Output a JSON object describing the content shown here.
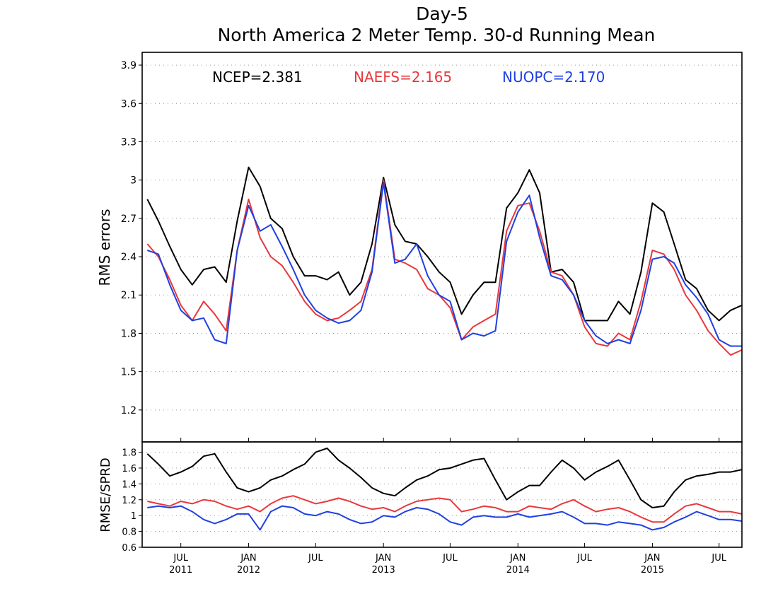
{
  "colors": {
    "ncep": "#000000",
    "naefs": "#e8383c",
    "nuopc": "#2040e0",
    "grid": "#9a9a9a"
  },
  "chart_data": [
    {
      "type": "line",
      "title": "Day-5",
      "subtitle": "North America 2 Meter Temp. 30-d Running Mean",
      "ylabel": "RMS errors",
      "ylim": [
        0.95,
        4.0
      ],
      "yticks": [
        "1.2",
        "1.5",
        "1.8",
        "2.1",
        "2.4",
        "2.7",
        "3",
        "3.3",
        "3.6",
        "3.9"
      ],
      "grid": "dotted",
      "legend": [
        {
          "label": "NCEP=2.381",
          "series": "NCEP"
        },
        {
          "label": "NAEFS=2.165",
          "series": "NAEFS"
        },
        {
          "label": "NUOPC=2.170",
          "series": "NUOPC"
        }
      ],
      "x": [
        "2011-04",
        "2011-05",
        "2011-06",
        "2011-07",
        "2011-08",
        "2011-09",
        "2011-10",
        "2011-11",
        "2011-12",
        "2012-01",
        "2012-02",
        "2012-03",
        "2012-04",
        "2012-05",
        "2012-06",
        "2012-07",
        "2012-08",
        "2012-09",
        "2012-10",
        "2012-11",
        "2012-12",
        "2013-01",
        "2013-02",
        "2013-03",
        "2013-04",
        "2013-05",
        "2013-06",
        "2013-07",
        "2013-08",
        "2013-09",
        "2013-10",
        "2013-11",
        "2013-12",
        "2014-01",
        "2014-02",
        "2014-03",
        "2014-04",
        "2014-05",
        "2014-06",
        "2014-07",
        "2014-08",
        "2014-09",
        "2014-10",
        "2014-11",
        "2014-12",
        "2015-01",
        "2015-02",
        "2015-03",
        "2015-04",
        "2015-05",
        "2015-06",
        "2015-07",
        "2015-08",
        "2015-09"
      ],
      "series": [
        {
          "name": "NCEP",
          "values": [
            2.85,
            2.68,
            2.48,
            2.3,
            2.18,
            2.3,
            2.32,
            2.2,
            2.68,
            3.1,
            2.95,
            2.7,
            2.62,
            2.4,
            2.25,
            2.25,
            2.22,
            2.28,
            2.1,
            2.2,
            2.5,
            3.02,
            2.65,
            2.52,
            2.5,
            2.4,
            2.28,
            2.2,
            1.95,
            2.1,
            2.2,
            2.2,
            2.78,
            2.9,
            3.08,
            2.9,
            2.28,
            2.3,
            2.2,
            1.9,
            1.9,
            1.9,
            2.05,
            1.95,
            2.28,
            2.82,
            2.75,
            2.5,
            2.22,
            2.15,
            1.98,
            1.9,
            1.98,
            2.02
          ]
        },
        {
          "name": "NAEFS",
          "values": [
            2.5,
            2.4,
            2.22,
            2.02,
            1.9,
            2.05,
            1.95,
            1.82,
            2.45,
            2.85,
            2.55,
            2.4,
            2.33,
            2.2,
            2.05,
            1.95,
            1.9,
            1.92,
            1.98,
            2.05,
            2.3,
            3.0,
            2.38,
            2.35,
            2.3,
            2.15,
            2.1,
            2.0,
            1.75,
            1.85,
            1.9,
            1.95,
            2.6,
            2.8,
            2.82,
            2.6,
            2.28,
            2.25,
            2.1,
            1.85,
            1.72,
            1.7,
            1.8,
            1.75,
            2.05,
            2.45,
            2.42,
            2.3,
            2.1,
            1.98,
            1.82,
            1.72,
            1.63,
            1.67
          ]
        },
        {
          "name": "NUOPC",
          "values": [
            2.45,
            2.42,
            2.18,
            1.98,
            1.9,
            1.92,
            1.75,
            1.72,
            2.45,
            2.8,
            2.6,
            2.65,
            2.48,
            2.3,
            2.1,
            1.98,
            1.92,
            1.88,
            1.9,
            1.98,
            2.28,
            2.98,
            2.35,
            2.38,
            2.5,
            2.25,
            2.1,
            2.05,
            1.75,
            1.8,
            1.78,
            1.82,
            2.52,
            2.75,
            2.88,
            2.55,
            2.25,
            2.22,
            2.1,
            1.9,
            1.78,
            1.72,
            1.75,
            1.72,
            1.98,
            2.38,
            2.4,
            2.35,
            2.18,
            2.08,
            1.95,
            1.75,
            1.7,
            1.7
          ]
        }
      ]
    },
    {
      "type": "line",
      "ylabel": "RMSE/SPRD",
      "ylim": [
        0.6,
        1.93
      ],
      "yticks": [
        "0.6",
        "0.8",
        "1",
        "1.2",
        "1.4",
        "1.6",
        "1.8"
      ],
      "grid": "dotted",
      "xticks": [
        {
          "month": "JUL",
          "year": "2011",
          "date": "2011-07"
        },
        {
          "month": "JAN",
          "year": "2012",
          "date": "2012-01"
        },
        {
          "month": "JUL",
          "year": "",
          "date": "2012-07"
        },
        {
          "month": "JAN",
          "year": "2013",
          "date": "2013-01"
        },
        {
          "month": "JUL",
          "year": "",
          "date": "2013-07"
        },
        {
          "month": "JAN",
          "year": "2014",
          "date": "2014-01"
        },
        {
          "month": "JUL",
          "year": "",
          "date": "2014-07"
        },
        {
          "month": "JAN",
          "year": "2015",
          "date": "2015-01"
        },
        {
          "month": "JUL",
          "year": "",
          "date": "2015-07"
        }
      ],
      "x": [
        "2011-04",
        "2011-05",
        "2011-06",
        "2011-07",
        "2011-08",
        "2011-09",
        "2011-10",
        "2011-11",
        "2011-12",
        "2012-01",
        "2012-02",
        "2012-03",
        "2012-04",
        "2012-05",
        "2012-06",
        "2012-07",
        "2012-08",
        "2012-09",
        "2012-10",
        "2012-11",
        "2012-12",
        "2013-01",
        "2013-02",
        "2013-03",
        "2013-04",
        "2013-05",
        "2013-06",
        "2013-07",
        "2013-08",
        "2013-09",
        "2013-10",
        "2013-11",
        "2013-12",
        "2014-01",
        "2014-02",
        "2014-03",
        "2014-04",
        "2014-05",
        "2014-06",
        "2014-07",
        "2014-08",
        "2014-09",
        "2014-10",
        "2014-11",
        "2014-12",
        "2015-01",
        "2015-02",
        "2015-03",
        "2015-04",
        "2015-05",
        "2015-06",
        "2015-07",
        "2015-08",
        "2015-09"
      ],
      "series": [
        {
          "name": "NCEP",
          "values": [
            1.78,
            1.65,
            1.5,
            1.55,
            1.62,
            1.75,
            1.78,
            1.55,
            1.35,
            1.3,
            1.35,
            1.45,
            1.5,
            1.58,
            1.65,
            1.8,
            1.85,
            1.7,
            1.6,
            1.48,
            1.35,
            1.28,
            1.25,
            1.35,
            1.45,
            1.5,
            1.58,
            1.6,
            1.65,
            1.7,
            1.72,
            1.45,
            1.2,
            1.3,
            1.38,
            1.38,
            1.55,
            1.7,
            1.6,
            1.45,
            1.55,
            1.62,
            1.7,
            1.45,
            1.2,
            1.1,
            1.12,
            1.3,
            1.45,
            1.5,
            1.52,
            1.55,
            1.55,
            1.58
          ]
        },
        {
          "name": "NAEFS",
          "values": [
            1.18,
            1.15,
            1.12,
            1.18,
            1.15,
            1.2,
            1.18,
            1.12,
            1.08,
            1.12,
            1.05,
            1.15,
            1.22,
            1.25,
            1.2,
            1.15,
            1.18,
            1.22,
            1.18,
            1.12,
            1.08,
            1.1,
            1.05,
            1.12,
            1.18,
            1.2,
            1.22,
            1.2,
            1.05,
            1.08,
            1.12,
            1.1,
            1.05,
            1.05,
            1.12,
            1.1,
            1.08,
            1.15,
            1.2,
            1.12,
            1.05,
            1.08,
            1.1,
            1.05,
            0.98,
            0.92,
            0.92,
            1.02,
            1.12,
            1.15,
            1.1,
            1.05,
            1.05,
            1.02
          ]
        },
        {
          "name": "NUOPC",
          "values": [
            1.1,
            1.12,
            1.1,
            1.12,
            1.05,
            0.95,
            0.9,
            0.95,
            1.02,
            1.02,
            0.82,
            1.05,
            1.12,
            1.1,
            1.02,
            1.0,
            1.05,
            1.02,
            0.95,
            0.9,
            0.92,
            1.0,
            0.98,
            1.05,
            1.1,
            1.08,
            1.02,
            0.92,
            0.88,
            0.98,
            1.0,
            0.98,
            0.98,
            1.02,
            0.98,
            1.0,
            1.02,
            1.05,
            0.98,
            0.9,
            0.9,
            0.88,
            0.92,
            0.9,
            0.88,
            0.82,
            0.85,
            0.92,
            0.98,
            1.05,
            1.0,
            0.95,
            0.95,
            0.93
          ]
        }
      ]
    }
  ]
}
